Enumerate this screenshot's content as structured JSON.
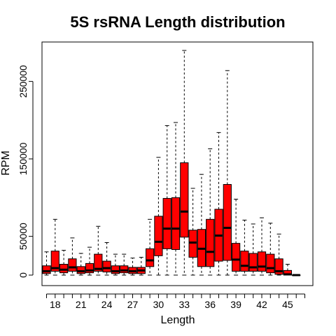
{
  "chart_data": {
    "type": "boxplot",
    "title": "5S rsRNA Length distribution",
    "xlabel": "Length",
    "ylabel": "RPM",
    "box_color": "#ff0000",
    "border_color": "#000000",
    "ylim": [
      0,
      300000
    ],
    "y_ticks": [
      0,
      50000,
      150000,
      250000
    ],
    "y_tick_labels": [
      "0",
      "50000",
      "150000",
      "250000"
    ],
    "x_tick_labels": [
      "18",
      "21",
      "24",
      "27",
      "30",
      "33",
      "36",
      "39",
      "42",
      "45"
    ],
    "categories": [
      17,
      18,
      19,
      20,
      21,
      22,
      23,
      24,
      25,
      26,
      27,
      28,
      29,
      30,
      31,
      32,
      33,
      34,
      35,
      36,
      37,
      38,
      39,
      40,
      41,
      42,
      43,
      44,
      45,
      46,
      47
    ],
    "boxes": [
      {
        "x": 17,
        "min": 0,
        "q1": 2000,
        "median": 5000,
        "q3": 12000,
        "max": 30000
      },
      {
        "x": 18,
        "min": 0,
        "q1": 5000,
        "median": 9000,
        "q3": 31000,
        "max": 72000
      },
      {
        "x": 19,
        "min": 0,
        "q1": 3000,
        "median": 7000,
        "q3": 14000,
        "max": 32000
      },
      {
        "x": 20,
        "min": 0,
        "q1": 5000,
        "median": 10000,
        "q3": 21000,
        "max": 48000
      },
      {
        "x": 21,
        "min": 0,
        "q1": 2000,
        "median": 5000,
        "q3": 11000,
        "max": 28000
      },
      {
        "x": 22,
        "min": 0,
        "q1": 3000,
        "median": 6000,
        "q3": 15000,
        "max": 36000
      },
      {
        "x": 23,
        "min": 0,
        "q1": 5000,
        "median": 8000,
        "q3": 27000,
        "max": 63000
      },
      {
        "x": 24,
        "min": 0,
        "q1": 4000,
        "median": 9000,
        "q3": 18000,
        "max": 42000
      },
      {
        "x": 25,
        "min": 0,
        "q1": 2000,
        "median": 5000,
        "q3": 12000,
        "max": 27000
      },
      {
        "x": 26,
        "min": 0,
        "q1": 3000,
        "median": 6000,
        "q3": 12000,
        "max": 27000
      },
      {
        "x": 27,
        "min": 0,
        "q1": 2000,
        "median": 5000,
        "q3": 10000,
        "max": 22000
      },
      {
        "x": 28,
        "min": 0,
        "q1": 2000,
        "median": 6000,
        "q3": 10000,
        "max": 23000
      },
      {
        "x": 29,
        "min": 0,
        "q1": 11000,
        "median": 19000,
        "q3": 34000,
        "max": 72000
      },
      {
        "x": 30,
        "min": 0,
        "q1": 25000,
        "median": 43000,
        "q3": 76000,
        "max": 152000
      },
      {
        "x": 31,
        "min": 0,
        "q1": 34000,
        "median": 60000,
        "q3": 99000,
        "max": 193000
      },
      {
        "x": 32,
        "min": 0,
        "q1": 33000,
        "median": 60000,
        "q3": 100000,
        "max": 197000
      },
      {
        "x": 33,
        "min": 0,
        "q1": 49000,
        "median": 82000,
        "q3": 145000,
        "max": 290000
      },
      {
        "x": 34,
        "min": 0,
        "q1": 23000,
        "median": 42000,
        "q3": 58000,
        "max": 112000
      },
      {
        "x": 35,
        "min": 0,
        "q1": 11000,
        "median": 34000,
        "q3": 59000,
        "max": 130000
      },
      {
        "x": 36,
        "min": 0,
        "q1": 11000,
        "median": 30000,
        "q3": 72000,
        "max": 163000
      },
      {
        "x": 37,
        "min": 0,
        "q1": 18000,
        "median": 51000,
        "q3": 85000,
        "max": 184000
      },
      {
        "x": 38,
        "min": 0,
        "q1": 19000,
        "median": 61000,
        "q3": 117000,
        "max": 264000
      },
      {
        "x": 39,
        "min": 0,
        "q1": 5000,
        "median": 20000,
        "q3": 41000,
        "max": 98000
      },
      {
        "x": 40,
        "min": 0,
        "q1": 5000,
        "median": 12000,
        "q3": 31000,
        "max": 71000
      },
      {
        "x": 41,
        "min": 0,
        "q1": 5000,
        "median": 10000,
        "q3": 28000,
        "max": 66000
      },
      {
        "x": 42,
        "min": 0,
        "q1": 5000,
        "median": 11000,
        "q3": 30000,
        "max": 74000
      },
      {
        "x": 43,
        "min": 0,
        "q1": 3000,
        "median": 9000,
        "q3": 27000,
        "max": 67000
      },
      {
        "x": 44,
        "min": 0,
        "q1": 1000,
        "median": 5000,
        "q3": 21000,
        "max": 53000
      },
      {
        "x": 45,
        "min": 0,
        "q1": 0,
        "median": 1000,
        "q3": 6000,
        "max": 14000
      },
      {
        "x": 46,
        "min": 0,
        "q1": 0,
        "median": 0,
        "q3": 0,
        "max": 0
      }
    ]
  }
}
